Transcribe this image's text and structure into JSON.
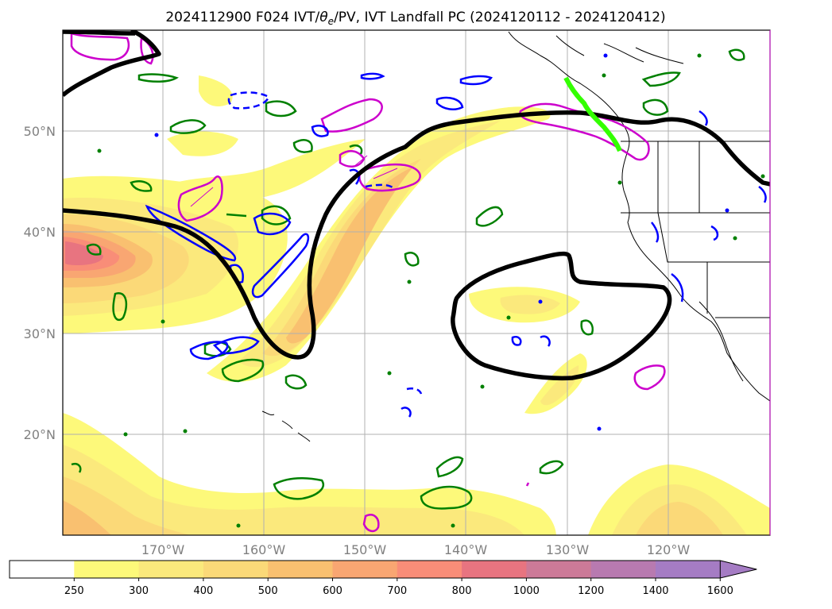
{
  "title": {
    "prefix": "2024112900 F024 IVT/",
    "theta": "θ",
    "sub": "e",
    "suffix": "/PV, IVT Landfall PC (2024120112 - 2024120412)"
  },
  "map": {
    "lat_labels": [
      "50°N",
      "40°N",
      "30°N",
      "20°N"
    ],
    "lon_labels": [
      "170°W",
      "160°W",
      "150°W",
      "140°W",
      "130°W",
      "120°W"
    ],
    "lat_values": [
      50,
      40,
      30,
      20
    ],
    "lon_values": [
      -170,
      -160,
      -150,
      -140,
      -130,
      -120
    ]
  },
  "colorbar": {
    "ticks": [
      "250",
      "300",
      "400",
      "500",
      "600",
      "700",
      "800",
      "1000",
      "1200",
      "1400",
      "1600"
    ],
    "colors": [
      "#ffffff",
      "#fdf97a",
      "#fbe97c",
      "#fbd978",
      "#f9c070",
      "#f9a672",
      "#f98d78",
      "#e87480",
      "#cc7a98",
      "#b87ab0",
      "#a57cc4"
    ],
    "extend": "max"
  },
  "colors": {
    "ivt_contour": "#000000",
    "pv": "#cc00cc",
    "theta_e_pos": "#008000",
    "theta_e_neg": "#0000ff",
    "landfall": "#33ff00"
  }
}
